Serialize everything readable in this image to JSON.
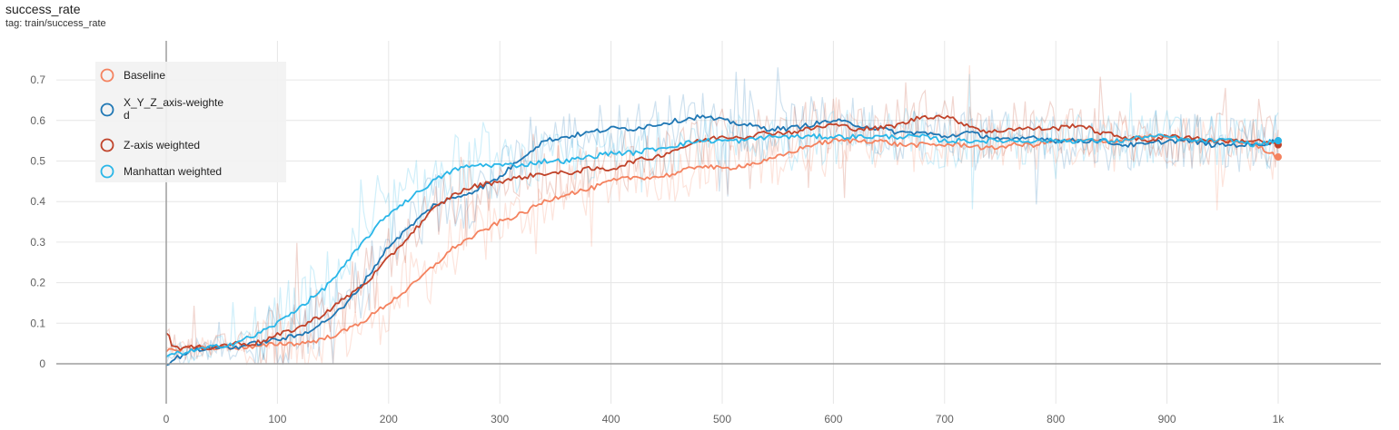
{
  "header": {
    "title": "success_rate",
    "tag": "tag: train/success_rate"
  },
  "chart_data": {
    "type": "line",
    "title": "success_rate",
    "subtitle": "tag: train/success_rate",
    "xlim": [
      -100,
      1090
    ],
    "ylim": [
      -0.1,
      0.78
    ],
    "x_ticks": [
      0,
      100,
      200,
      300,
      400,
      500,
      600,
      700,
      800,
      900,
      1000
    ],
    "x_tick_labels": [
      "0",
      "100",
      "200",
      "300",
      "400",
      "500",
      "600",
      "700",
      "800",
      "900",
      "1k"
    ],
    "y_ticks": [
      0,
      0.1,
      0.2,
      0.3,
      0.4,
      0.5,
      0.6,
      0.7
    ],
    "y_tick_labels": [
      "0",
      "0.1",
      "0.2",
      "0.3",
      "0.4",
      "0.5",
      "0.6",
      "0.7"
    ],
    "grid": true,
    "legend_position": "top-left",
    "series": [
      {
        "name": "Baseline",
        "color": "#f4825f",
        "x": [
          0,
          20,
          40,
          60,
          80,
          100,
          120,
          140,
          160,
          180,
          200,
          220,
          240,
          260,
          280,
          300,
          320,
          340,
          360,
          380,
          400,
          420,
          440,
          460,
          480,
          500,
          520,
          540,
          560,
          580,
          600,
          620,
          640,
          660,
          680,
          700,
          720,
          740,
          760,
          780,
          800,
          820,
          840,
          860,
          880,
          900,
          920,
          940,
          960,
          980,
          1000
        ],
        "y": [
          0.03,
          0.04,
          0.04,
          0.04,
          0.04,
          0.05,
          0.05,
          0.06,
          0.08,
          0.11,
          0.15,
          0.19,
          0.24,
          0.29,
          0.32,
          0.35,
          0.37,
          0.4,
          0.42,
          0.43,
          0.45,
          0.46,
          0.46,
          0.47,
          0.49,
          0.48,
          0.49,
          0.5,
          0.52,
          0.54,
          0.55,
          0.55,
          0.55,
          0.54,
          0.54,
          0.54,
          0.54,
          0.53,
          0.54,
          0.54,
          0.55,
          0.55,
          0.55,
          0.55,
          0.56,
          0.56,
          0.55,
          0.55,
          0.55,
          0.54,
          0.51
        ]
      },
      {
        "name": "X_Y_Z_axis-weighted",
        "color": "#1f77b4",
        "x": [
          0,
          20,
          40,
          60,
          80,
          100,
          120,
          140,
          160,
          180,
          200,
          220,
          240,
          260,
          280,
          300,
          320,
          340,
          360,
          380,
          400,
          420,
          440,
          460,
          480,
          500,
          520,
          540,
          560,
          580,
          600,
          620,
          640,
          660,
          680,
          700,
          720,
          740,
          760,
          780,
          800,
          820,
          840,
          860,
          880,
          900,
          920,
          940,
          960,
          980,
          1000
        ],
        "y": [
          0.0,
          0.03,
          0.04,
          0.04,
          0.05,
          0.06,
          0.07,
          0.1,
          0.14,
          0.21,
          0.29,
          0.34,
          0.39,
          0.41,
          0.43,
          0.46,
          0.51,
          0.55,
          0.56,
          0.57,
          0.58,
          0.58,
          0.59,
          0.6,
          0.61,
          0.6,
          0.59,
          0.58,
          0.58,
          0.59,
          0.6,
          0.59,
          0.58,
          0.57,
          0.57,
          0.56,
          0.57,
          0.56,
          0.55,
          0.56,
          0.55,
          0.55,
          0.55,
          0.54,
          0.54,
          0.55,
          0.55,
          0.54,
          0.54,
          0.54,
          0.55
        ]
      },
      {
        "name": "Z-axis weighted",
        "color": "#c0432a",
        "x": [
          0,
          5,
          10,
          20,
          40,
          60,
          80,
          100,
          120,
          140,
          160,
          180,
          200,
          220,
          240,
          260,
          280,
          300,
          320,
          340,
          360,
          380,
          400,
          420,
          440,
          460,
          480,
          500,
          520,
          540,
          560,
          580,
          600,
          620,
          640,
          660,
          680,
          700,
          720,
          740,
          760,
          780,
          800,
          820,
          840,
          860,
          880,
          900,
          920,
          940,
          960,
          980,
          1000
        ],
        "y": [
          0.08,
          0.05,
          0.04,
          0.04,
          0.04,
          0.05,
          0.05,
          0.07,
          0.09,
          0.12,
          0.16,
          0.2,
          0.26,
          0.32,
          0.38,
          0.42,
          0.44,
          0.45,
          0.46,
          0.47,
          0.47,
          0.48,
          0.48,
          0.5,
          0.51,
          0.53,
          0.55,
          0.56,
          0.56,
          0.57,
          0.57,
          0.58,
          0.59,
          0.58,
          0.58,
          0.59,
          0.61,
          0.61,
          0.59,
          0.57,
          0.58,
          0.58,
          0.58,
          0.59,
          0.57,
          0.56,
          0.55,
          0.56,
          0.56,
          0.55,
          0.55,
          0.55,
          0.54
        ]
      },
      {
        "name": "Manhattan weighted",
        "color": "#29b6e8",
        "x": [
          0,
          20,
          40,
          60,
          80,
          100,
          120,
          140,
          160,
          180,
          200,
          220,
          240,
          260,
          280,
          300,
          320,
          340,
          360,
          380,
          400,
          420,
          440,
          460,
          480,
          500,
          520,
          540,
          560,
          580,
          600,
          620,
          640,
          660,
          680,
          700,
          720,
          740,
          760,
          780,
          800,
          820,
          840,
          860,
          880,
          900,
          920,
          940,
          960,
          980,
          1000
        ],
        "y": [
          0.02,
          0.03,
          0.04,
          0.05,
          0.07,
          0.1,
          0.14,
          0.18,
          0.24,
          0.31,
          0.37,
          0.41,
          0.45,
          0.48,
          0.49,
          0.49,
          0.49,
          0.5,
          0.5,
          0.51,
          0.52,
          0.52,
          0.53,
          0.54,
          0.55,
          0.55,
          0.55,
          0.56,
          0.56,
          0.56,
          0.56,
          0.56,
          0.56,
          0.56,
          0.56,
          0.55,
          0.55,
          0.55,
          0.55,
          0.55,
          0.55,
          0.55,
          0.55,
          0.55,
          0.56,
          0.56,
          0.55,
          0.55,
          0.55,
          0.54,
          0.55
        ]
      }
    ]
  }
}
